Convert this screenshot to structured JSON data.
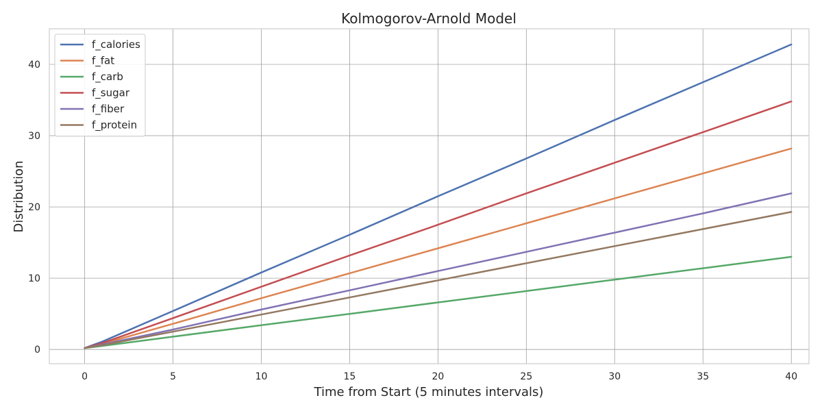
{
  "chart_data": {
    "type": "line",
    "title": "Kolmogorov-Arnold Model",
    "xlabel": "Time from Start (5 minutes intervals)",
    "ylabel": "Distribution",
    "xlim": [
      -2,
      41
    ],
    "ylim": [
      -2,
      45
    ],
    "xticks": [
      0,
      5,
      10,
      15,
      20,
      25,
      30,
      35,
      40
    ],
    "yticks": [
      0,
      10,
      20,
      30,
      40
    ],
    "grid": true,
    "legend_position": "top-left",
    "series": [
      {
        "name": "f_calories",
        "color": "#4c72b0",
        "x": [
          0,
          1,
          5,
          10,
          15,
          20,
          25,
          30,
          35,
          40
        ],
        "y": [
          0.2,
          1.1,
          5.4,
          10.8,
          16.1,
          21.5,
          26.8,
          32.2,
          37.5,
          42.8
        ]
      },
      {
        "name": "f_fat",
        "color": "#dd8452",
        "x": [
          0,
          1,
          5,
          10,
          15,
          20,
          25,
          30,
          35,
          40
        ],
        "y": [
          0.2,
          0.8,
          3.6,
          7.2,
          10.7,
          14.2,
          17.7,
          21.2,
          24.7,
          28.2
        ]
      },
      {
        "name": "f_carb",
        "color": "#55a868",
        "x": [
          0,
          1,
          5,
          10,
          15,
          20,
          25,
          30,
          35,
          40
        ],
        "y": [
          0.2,
          0.5,
          1.8,
          3.4,
          5.0,
          6.6,
          8.2,
          9.8,
          11.4,
          13.0
        ]
      },
      {
        "name": "f_sugar",
        "color": "#c44e52",
        "x": [
          0,
          1,
          5,
          10,
          15,
          20,
          25,
          30,
          35,
          40
        ],
        "y": [
          0.2,
          0.9,
          4.4,
          8.8,
          13.2,
          17.5,
          21.9,
          26.2,
          30.5,
          34.8
        ]
      },
      {
        "name": "f_fiber",
        "color": "#8172b3",
        "x": [
          0,
          1,
          5,
          10,
          15,
          20,
          25,
          30,
          35,
          40
        ],
        "y": [
          0.2,
          0.7,
          2.8,
          5.6,
          8.3,
          11.0,
          13.7,
          16.4,
          19.1,
          21.9
        ]
      },
      {
        "name": "f_protein",
        "color": "#937860",
        "x": [
          0,
          1,
          5,
          10,
          15,
          20,
          25,
          30,
          35,
          40
        ],
        "y": [
          0.2,
          0.6,
          2.5,
          4.9,
          7.3,
          9.7,
          12.1,
          14.5,
          16.9,
          19.3
        ]
      }
    ]
  }
}
